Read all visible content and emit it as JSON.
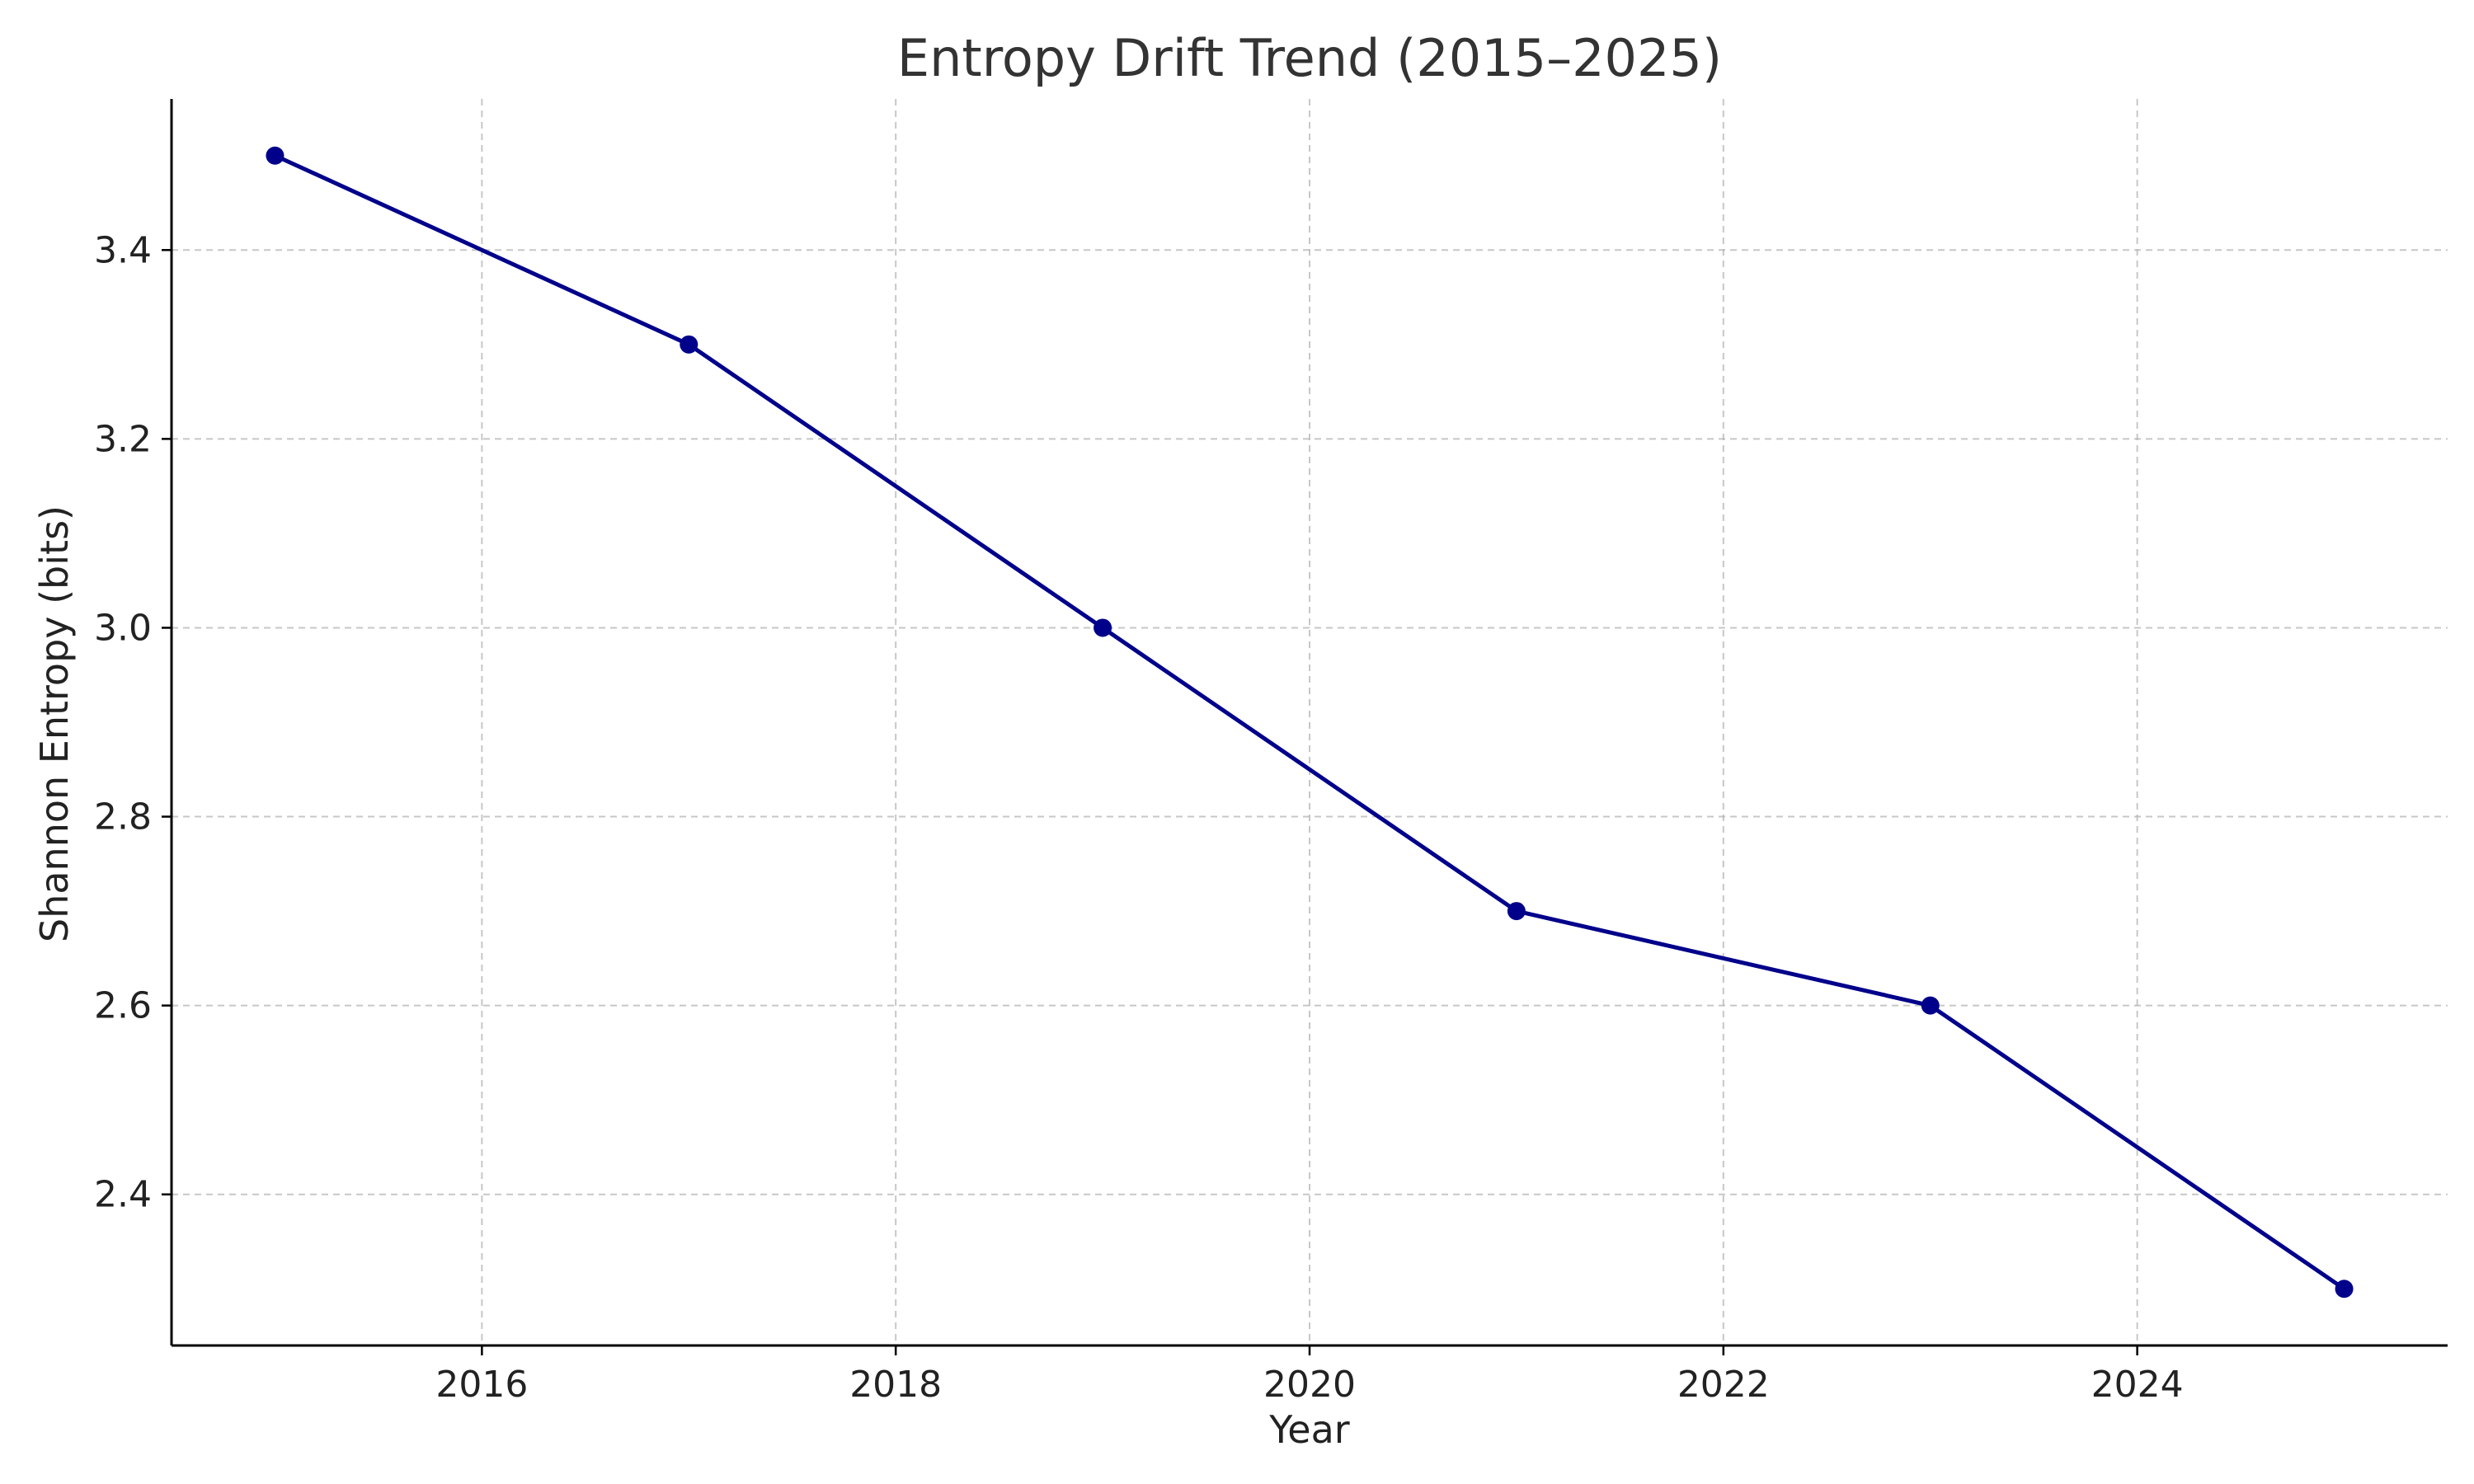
{
  "chart_data": {
    "type": "line",
    "title": "Entropy Drift Trend (2015–2025)",
    "xlabel": "Year",
    "ylabel": "Shannon Entropy (bits)",
    "x": [
      2015,
      2017,
      2019,
      2021,
      2023,
      2025
    ],
    "series": [
      {
        "values": [
          3.5,
          3.3,
          3.0,
          2.7,
          2.6,
          2.3
        ],
        "color": "#00008b",
        "marker": "circle"
      }
    ],
    "xlim": [
      2014.5,
      2025.5
    ],
    "ylim": [
      2.24,
      3.56
    ],
    "xticks": [
      2016,
      2018,
      2020,
      2022,
      2024
    ],
    "xtick_labels": [
      "2016",
      "2018",
      "2020",
      "2022",
      "2024"
    ],
    "yticks": [
      2.4,
      2.6,
      2.8,
      3.0,
      3.2,
      3.4
    ],
    "ytick_labels": [
      "2.4",
      "2.6",
      "2.8",
      "3.0",
      "3.2",
      "3.4"
    ],
    "grid": true,
    "legend": "none"
  }
}
